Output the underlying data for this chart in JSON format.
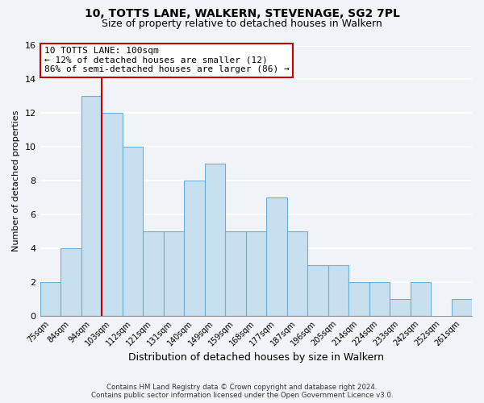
{
  "title": "10, TOTTS LANE, WALKERN, STEVENAGE, SG2 7PL",
  "subtitle": "Size of property relative to detached houses in Walkern",
  "xlabel": "Distribution of detached houses by size in Walkern",
  "ylabel": "Number of detached properties",
  "categories": [
    "75sqm",
    "84sqm",
    "94sqm",
    "103sqm",
    "112sqm",
    "121sqm",
    "131sqm",
    "140sqm",
    "149sqm",
    "159sqm",
    "168sqm",
    "177sqm",
    "187sqm",
    "196sqm",
    "205sqm",
    "214sqm",
    "224sqm",
    "233sqm",
    "242sqm",
    "252sqm",
    "261sqm"
  ],
  "values": [
    2,
    4,
    13,
    12,
    10,
    5,
    5,
    8,
    9,
    5,
    5,
    7,
    5,
    3,
    3,
    2,
    2,
    1,
    2,
    0,
    1
  ],
  "bar_color": "#c8dff0",
  "bar_edge_color": "#6baed6",
  "ref_line_index": 2,
  "ref_line_color": "#cc0000",
  "annotation_line1": "10 TOTTS LANE: 100sqm",
  "annotation_line2": "← 12% of detached houses are smaller (12)",
  "annotation_line3": "86% of semi-detached houses are larger (86) →",
  "annotation_box_color": "#ffffff",
  "annotation_box_edge_color": "#cc0000",
  "ylim": [
    0,
    16
  ],
  "yticks": [
    0,
    2,
    4,
    6,
    8,
    10,
    12,
    14,
    16
  ],
  "footer_line1": "Contains HM Land Registry data © Crown copyright and database right 2024.",
  "footer_line2": "Contains public sector information licensed under the Open Government Licence v3.0.",
  "background_color": "#f0f4f8",
  "grid_color": "#ffffff",
  "title_fontsize": 10,
  "subtitle_fontsize": 9,
  "ylabel_fontsize": 8,
  "xlabel_fontsize": 9,
  "tick_fontsize": 7,
  "annot_fontsize": 8
}
